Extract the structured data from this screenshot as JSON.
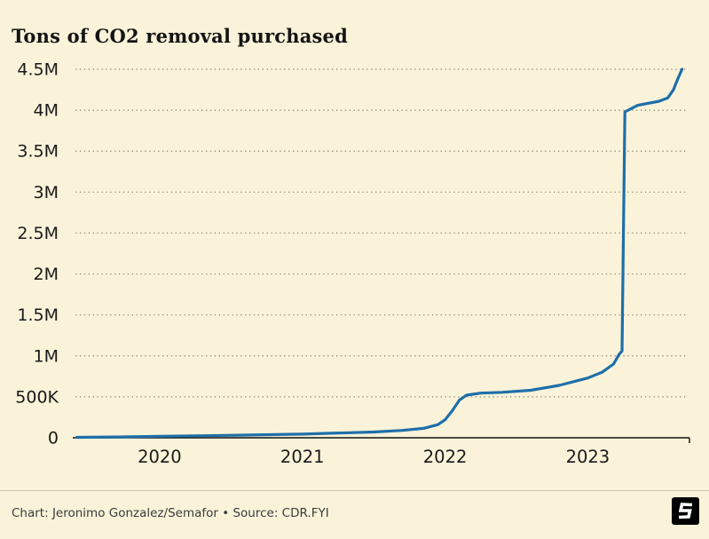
{
  "page": {
    "title": "Tons of CO2 removal purchased",
    "footer_credit": "Chart: Jeronimo Gonzalez/Semafor • Source: CDR.FYI"
  },
  "colors": {
    "background": "#faf3da",
    "text": "#1a1a1a",
    "axis": "#111111",
    "grid": "#84806c",
    "divider": "#c8c2aa",
    "footer_text": "#3a3a3a",
    "logo_bg": "#000000",
    "logo_fg": "#ffffff"
  },
  "chart_data": {
    "type": "line",
    "title": "Tons of CO2 removal purchased",
    "series_name": "Tons of CO2 removal purchased (cumulative)",
    "x": [
      2019.42,
      2019.7,
      2020.0,
      2020.3,
      2020.6,
      2020.9,
      2021.0,
      2021.2,
      2021.5,
      2021.7,
      2021.85,
      2021.95,
      2022.0,
      2022.05,
      2022.1,
      2022.15,
      2022.25,
      2022.4,
      2022.6,
      2022.8,
      2023.0,
      2023.1,
      2023.18,
      2023.22,
      2023.24,
      2023.26,
      2023.35,
      2023.5,
      2023.56,
      2023.6,
      2023.63,
      2023.66
    ],
    "y": [
      5000,
      10000,
      18000,
      25000,
      33000,
      42000,
      45000,
      55000,
      70000,
      90000,
      115000,
      160000,
      220000,
      330000,
      460000,
      520000,
      545000,
      555000,
      580000,
      640000,
      730000,
      800000,
      900000,
      1020000,
      1060000,
      3980000,
      4060000,
      4110000,
      4150000,
      4250000,
      4380000,
      4500000
    ],
    "xticks": [
      2020,
      2021,
      2022,
      2023
    ],
    "yticks": [
      0,
      500000,
      1000000,
      1500000,
      2000000,
      2500000,
      3000000,
      3500000,
      4000000,
      4500000
    ],
    "ytick_labels": [
      "0",
      "500K",
      "1M",
      "1.5M",
      "2M",
      "2.5M",
      "3M",
      "3.5M",
      "4M",
      "4.5M"
    ],
    "xlim": [
      2019.41,
      2023.7
    ],
    "ylim": [
      0,
      4500000
    ],
    "line_color": "#1e6fa8",
    "grid": "dotted",
    "legend": "none"
  }
}
